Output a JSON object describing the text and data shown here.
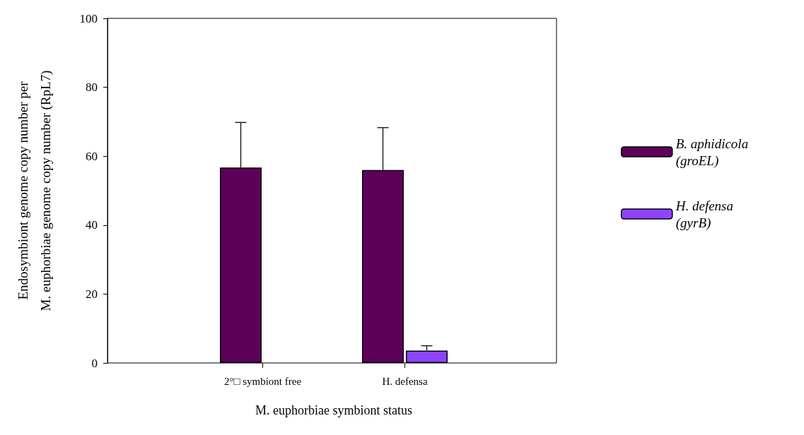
{
  "chart_data": {
    "type": "bar",
    "xlabel": "M. euphorbiae symbiont status",
    "ylabel": "Endosymbiont genome copy number per\nM. euphorbiae genome copy number (RpL7)",
    "categories": [
      "2°□ symbiont free",
      "H. defensa"
    ],
    "series": [
      {
        "name": "B. aphidicola (groEL)",
        "color": "#5e005a",
        "values": [
          56.7,
          56.0
        ],
        "errors": [
          [
            56.7,
            69.8
          ],
          [
            56.0,
            68.3
          ]
        ]
      },
      {
        "name": "H. defensa (gyrB)",
        "color": "#8e44fe",
        "values": [
          null,
          3.6
        ],
        "errors": [
          null,
          [
            3.6,
            5.0
          ]
        ]
      }
    ],
    "ylim": [
      0,
      100
    ],
    "yticks": [
      0,
      20,
      40,
      60,
      80,
      100
    ],
    "grid": false,
    "legend": "right"
  }
}
